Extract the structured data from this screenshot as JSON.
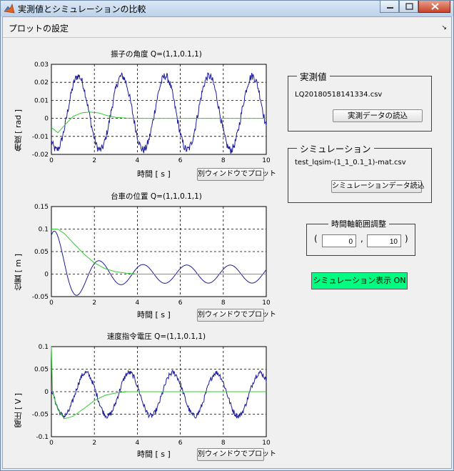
{
  "window": {
    "title": "実測値とシミュレーションの比較"
  },
  "panel": {
    "title": "プロットの設定"
  },
  "plots": [
    {
      "title": "振子の角度  Q=(1,1,0.1,1)",
      "ylabel": "角度 [ rad ]",
      "xlabel": "時間 [ s ]",
      "button": "別ウィンドウでプロット",
      "yticks": [
        "0.03",
        "0.02",
        "0.01",
        "0",
        "-0.01",
        "-0.02"
      ],
      "xticks": [
        "0",
        "2",
        "4",
        "6",
        "8",
        "10"
      ]
    },
    {
      "title": "台車の位置  Q=(1,1,0.1,1)",
      "ylabel": "位置 [ m ]",
      "xlabel": "時間 [ s ]",
      "button": "別ウィンドウでプロット",
      "yticks": [
        "0.15",
        "0.1",
        "0.05",
        "0",
        "-0.05"
      ],
      "xticks": [
        "0",
        "2",
        "4",
        "6",
        "8",
        "10"
      ]
    },
    {
      "title": "速度指令電圧  Q=(1,1,0.1,1)",
      "ylabel": "電圧 [ V ]",
      "xlabel": "時間 [ s ]",
      "button": "別ウィンドウでプロット",
      "yticks": [
        "0.1",
        "0.05",
        "0",
        "-0.05",
        "-0.1"
      ],
      "xticks": [
        "0",
        "2",
        "4",
        "6",
        "8",
        "10"
      ]
    }
  ],
  "measured": {
    "label": "実測値",
    "filename": "LQ20180518141334.csv",
    "button": "実測データの読込"
  },
  "simulation": {
    "label": "シミュレーション",
    "filename": "test_lqsim-(1_1_0.1_1)-mat.csv",
    "button": "シミュレーションデータ読込"
  },
  "time_range": {
    "label": "時間軸範囲調整",
    "open_paren": "(",
    "comma": ",",
    "close_paren": ")",
    "start": "0",
    "end": "10"
  },
  "sim_toggle": {
    "label": "シミュレーション表示 ON"
  },
  "colors": {
    "measured_line": "#1c1c9a",
    "simulation_line": "#33cc33",
    "toggle_bg": "#00ff80"
  },
  "icons": {
    "app": "matlab-membrane-icon",
    "minimize": "minimize-icon",
    "maximize": "maximize-icon",
    "close": "close-icon",
    "collapse": "collapse-arrow-icon"
  },
  "chart_data": [
    {
      "type": "line",
      "xlim": [
        0,
        10
      ],
      "ylim": [
        -0.02,
        0.03
      ],
      "grid": true,
      "series": [
        {
          "kind": "measured",
          "amp": 0.0205,
          "omega": 3.1,
          "phase": -2.3,
          "offset": 0.003,
          "decay": 0,
          "noise": 0.0022
        },
        {
          "kind": "simulation",
          "x": [
            0,
            0.3,
            0.6,
            1,
            1.4,
            1.8,
            2.2,
            2.6,
            3,
            3.5,
            4,
            5,
            6,
            7,
            8,
            9,
            10
          ],
          "y": [
            -0.005,
            -0.008,
            -0.004,
            0.001,
            0.003,
            0.0035,
            0.003,
            0.0015,
            0.0005,
            0.0001,
            0,
            0,
            0,
            0,
            0,
            0,
            0
          ]
        }
      ]
    },
    {
      "type": "line",
      "xlim": [
        0,
        10
      ],
      "ylim": [
        -0.05,
        0.15
      ],
      "grid": true,
      "series": [
        {
          "kind": "measured",
          "amp": 0.11,
          "omega": 3.1,
          "phase": 0.9,
          "offset": 0.0,
          "decay": 0.5,
          "noise": 0.0,
          "floor_amp": 0.02
        },
        {
          "kind": "simulation",
          "x": [
            0,
            0.3,
            0.6,
            1,
            1.5,
            2,
            2.5,
            3,
            3.5,
            4,
            5,
            6,
            7,
            8,
            9,
            10
          ],
          "y": [
            0.1,
            0.1,
            0.09,
            0.07,
            0.045,
            0.025,
            0.012,
            0.005,
            0.002,
            0,
            0,
            0,
            0,
            0,
            0,
            0
          ]
        }
      ]
    },
    {
      "type": "line",
      "xlim": [
        0,
        10
      ],
      "ylim": [
        -0.1,
        0.1
      ],
      "grid": true,
      "series": [
        {
          "kind": "measured",
          "amp": 0.048,
          "omega": 3.1,
          "phase": 2.9,
          "offset": -0.006,
          "decay": 0,
          "noise": 0.006
        },
        {
          "kind": "simulation",
          "x": [
            0,
            0.05,
            0.3,
            0.6,
            1,
            1.5,
            2,
            2.5,
            3,
            3.5,
            4,
            5,
            6,
            7,
            8,
            9,
            10
          ],
          "y": [
            0.1,
            0.0,
            -0.04,
            -0.06,
            -0.055,
            -0.038,
            -0.02,
            -0.008,
            -0.003,
            0,
            0,
            0,
            0,
            0,
            0,
            0,
            0
          ]
        }
      ]
    }
  ]
}
